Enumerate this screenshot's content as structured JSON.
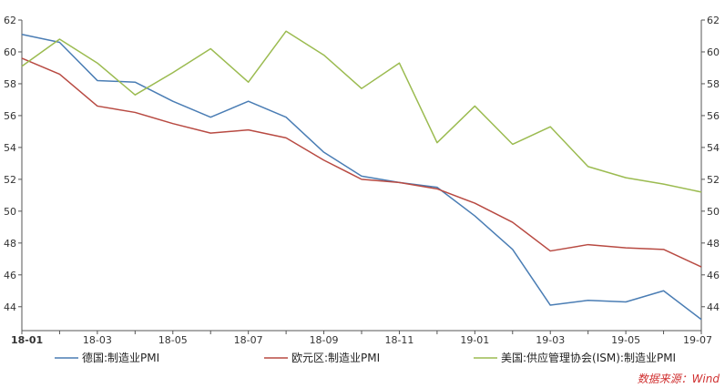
{
  "chart_data": {
    "type": "line",
    "categories": [
      "18-01",
      "18-02",
      "18-03",
      "18-04",
      "18-05",
      "18-06",
      "18-07",
      "18-08",
      "18-09",
      "18-10",
      "18-11",
      "18-12",
      "19-01",
      "19-02",
      "19-03",
      "19-04",
      "19-05",
      "19-06",
      "19-07"
    ],
    "x_tick_labels": [
      "18-01",
      "18-03",
      "18-05",
      "18-07",
      "18-09",
      "18-11",
      "19-01",
      "19-03",
      "19-05",
      "19-07"
    ],
    "y_ticks": [
      44,
      46,
      48,
      50,
      52,
      54,
      56,
      58,
      60,
      62
    ],
    "ylim": [
      42.5,
      62
    ],
    "grid": false,
    "legend_position": "bottom",
    "series": [
      {
        "name": "德国:制造业PMI",
        "color": "#4a7db4",
        "values": [
          61.1,
          60.6,
          58.2,
          58.1,
          56.9,
          55.9,
          56.9,
          55.9,
          53.7,
          52.2,
          51.8,
          51.5,
          49.7,
          47.6,
          44.1,
          44.4,
          44.3,
          45.0,
          43.2
        ]
      },
      {
        "name": "欧元区:制造业PMI",
        "color": "#b84a42",
        "values": [
          59.6,
          58.6,
          56.6,
          56.2,
          55.5,
          54.9,
          55.1,
          54.6,
          53.2,
          52.0,
          51.8,
          51.4,
          50.5,
          49.3,
          47.5,
          47.9,
          47.7,
          47.6,
          46.5
        ]
      },
      {
        "name": "美国:供应管理协会(ISM):制造业PMI",
        "color": "#9bbb50",
        "values": [
          59.1,
          60.8,
          59.3,
          57.3,
          58.7,
          60.2,
          58.1,
          61.3,
          59.8,
          57.7,
          59.3,
          54.3,
          56.6,
          54.2,
          55.3,
          52.8,
          52.1,
          51.7,
          51.2
        ]
      }
    ]
  },
  "source_label": "数据来源：Wind"
}
